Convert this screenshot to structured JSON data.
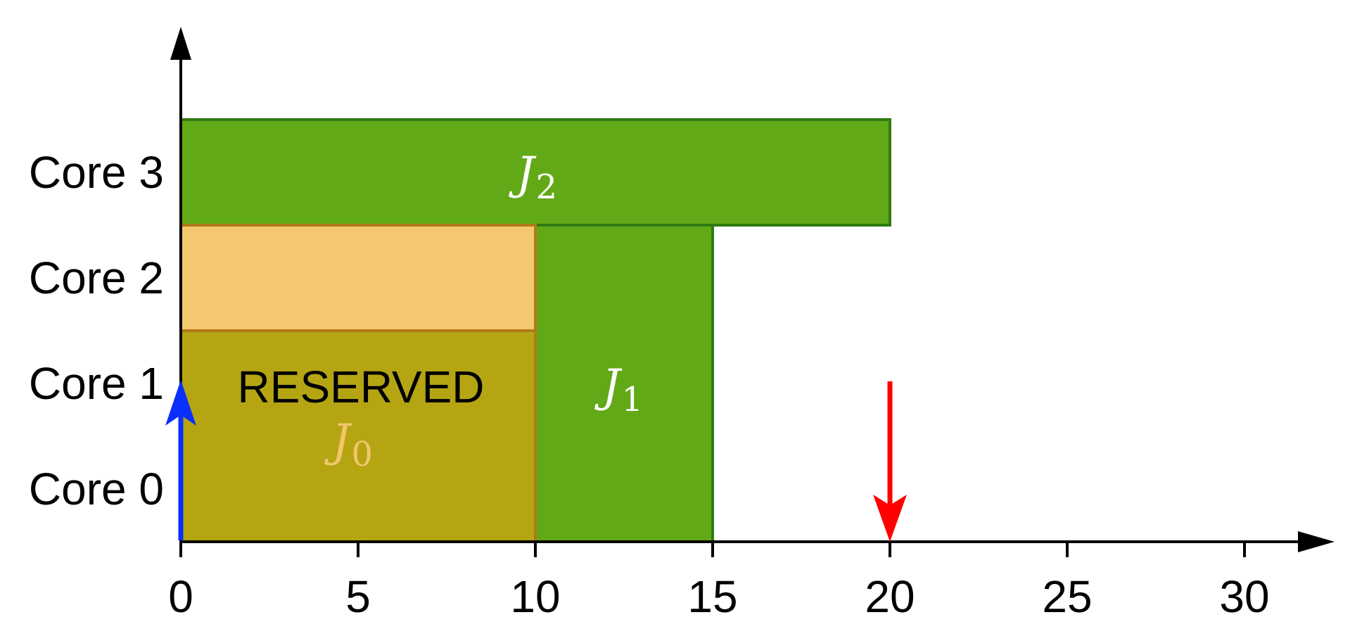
{
  "chart_data": {
    "type": "gantt",
    "x_ticks": [
      "0",
      "5",
      "10",
      "15",
      "20",
      "25",
      "30"
    ],
    "xlim": [
      0,
      32.5
    ],
    "cores": [
      "Core 0",
      "Core 1",
      "Core 2",
      "Core 3"
    ],
    "jobs": [
      {
        "id": "J0",
        "label_main": "J",
        "label_sub": "0",
        "start": 0,
        "end": 10,
        "core_from": 0,
        "core_to": 1,
        "color": "#b5a513",
        "stroke": "#b07a17",
        "text_color": "#f2c76b"
      },
      {
        "id": "J1",
        "label_main": "J",
        "label_sub": "1",
        "start": 10,
        "end": 15,
        "core_from": 0,
        "core_to": 2,
        "color": "#62a918",
        "stroke": "#2f7b12",
        "text_color": "#ffffff"
      },
      {
        "id": "J2",
        "label_main": "J",
        "label_sub": "2",
        "start": 0,
        "end": 20,
        "core_from": 3,
        "core_to": 3,
        "color": "#62a918",
        "stroke": "#2f7b12",
        "text_color": "#ffffff"
      }
    ],
    "reserved_block": {
      "label": "RESERVED",
      "start": 0,
      "end": 10,
      "core_from": 2,
      "core_to": 2,
      "color": "#f3c86f",
      "stroke": "#b07a17"
    },
    "release_arrow": {
      "time": 0,
      "color": "#0a2fff"
    },
    "deadline_arrow": {
      "time": 20,
      "color": "#ff0000"
    }
  }
}
